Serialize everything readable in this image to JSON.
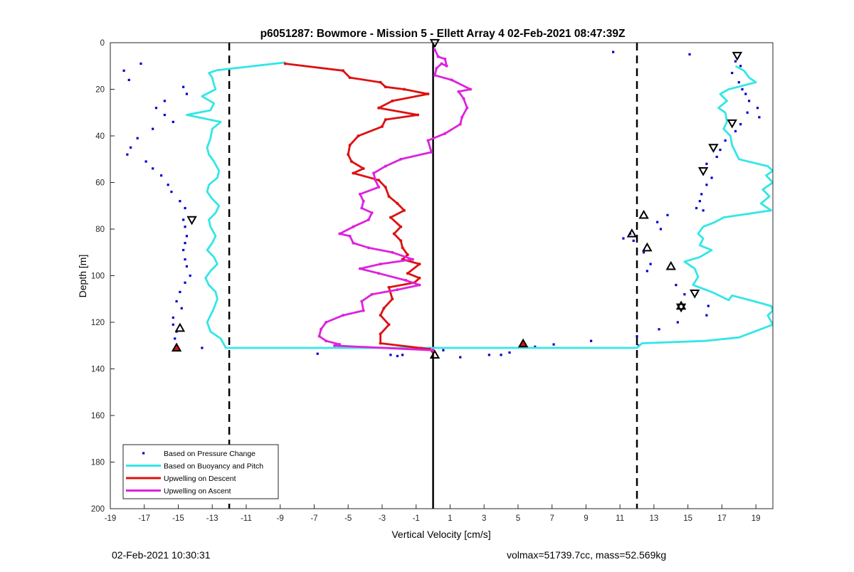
{
  "footer": {
    "timestamp": "02-Feb-2021 10:30:31",
    "stats": "volmax=51739.7cc, mass=52.569kg"
  },
  "chart_data": {
    "type": "line",
    "title": "p6051287: Bowmore - Mission 5 - Ellett Array 4 02-Feb-2021 08:47:39Z",
    "xlabel": "Vertical Velocity [cm/s]",
    "ylabel": "Depth [m]",
    "xlim": [
      -19,
      20
    ],
    "ylim": [
      0,
      200
    ],
    "y_reversed": true,
    "xticks": [
      -19,
      -17,
      -15,
      -13,
      -11,
      -9,
      -7,
      -5,
      -3,
      -1,
      1,
      3,
      5,
      7,
      9,
      11,
      13,
      15,
      17,
      19
    ],
    "yticks": [
      0,
      20,
      40,
      60,
      80,
      100,
      120,
      140,
      160,
      180,
      200
    ],
    "grid": false,
    "legend_position": "bottom-left",
    "vertical_lines": [
      {
        "x": -12,
        "style": "dashed",
        "color": "#000000"
      },
      {
        "x": 12,
        "style": "dashed",
        "color": "#000000"
      },
      {
        "x": 0,
        "style": "solid",
        "color": "#000000"
      }
    ],
    "series": [
      {
        "name": "Based on Pressure Change",
        "kind": "points",
        "color": "#0000cc",
        "points": [
          [
            -17.2,
            9
          ],
          [
            -18.2,
            12
          ],
          [
            -17.9,
            16
          ],
          [
            -14.7,
            19
          ],
          [
            -14.5,
            22
          ],
          [
            -15.8,
            25
          ],
          [
            -16.3,
            28
          ],
          [
            -15.8,
            31
          ],
          [
            -15.3,
            34
          ],
          [
            -16.5,
            37
          ],
          [
            -17.4,
            41
          ],
          [
            -17.8,
            45
          ],
          [
            -18,
            48
          ],
          [
            -16.9,
            51
          ],
          [
            -16.5,
            54
          ],
          [
            -16,
            57
          ],
          [
            -15.6,
            61
          ],
          [
            -15.4,
            64
          ],
          [
            -14.9,
            68
          ],
          [
            -14.6,
            71
          ],
          [
            -14.7,
            76
          ],
          [
            -14.6,
            79
          ],
          [
            -14.5,
            83
          ],
          [
            -14.6,
            86
          ],
          [
            -14.7,
            89
          ],
          [
            -14.6,
            93
          ],
          [
            -14.5,
            96
          ],
          [
            -14.3,
            100
          ],
          [
            -14.6,
            103
          ],
          [
            -14.9,
            107
          ],
          [
            -15.1,
            111
          ],
          [
            -14.8,
            114
          ],
          [
            -15.3,
            118
          ],
          [
            -15.3,
            121
          ],
          [
            -15.1,
            124
          ],
          [
            -15.2,
            127
          ],
          [
            -13.6,
            131
          ],
          [
            -15.2,
            132
          ],
          [
            -6.8,
            133.5
          ],
          [
            -2.5,
            134
          ],
          [
            -2.1,
            134.5
          ],
          [
            -1.8,
            134
          ],
          [
            -0.7,
            131
          ],
          [
            0.6,
            132
          ],
          [
            1.6,
            135
          ],
          [
            3.3,
            134
          ],
          [
            4,
            134
          ],
          [
            4.5,
            133
          ],
          [
            5.4,
            130
          ],
          [
            6,
            130.5
          ],
          [
            7.1,
            129.5
          ],
          [
            9.3,
            128
          ],
          [
            10.6,
            4
          ],
          [
            15.1,
            5
          ],
          [
            12,
            126
          ],
          [
            12.1,
            130
          ],
          [
            13.3,
            123
          ],
          [
            13.4,
            80
          ],
          [
            13.2,
            77
          ],
          [
            13.8,
            74
          ],
          [
            14.4,
            120
          ],
          [
            12.8,
            95
          ],
          [
            12.6,
            98
          ],
          [
            12.4,
            90
          ],
          [
            11.8,
            85
          ],
          [
            11.2,
            84
          ],
          [
            11.6,
            82
          ],
          [
            14.3,
            104
          ],
          [
            14.8,
            108
          ],
          [
            14.6,
            112
          ],
          [
            16.2,
            113
          ],
          [
            16.1,
            117
          ],
          [
            15.8,
            65
          ],
          [
            15.7,
            68
          ],
          [
            15.5,
            71
          ],
          [
            15.9,
            72
          ],
          [
            16.1,
            61
          ],
          [
            16.4,
            58
          ],
          [
            16.9,
            46
          ],
          [
            17.2,
            42
          ],
          [
            17.8,
            38
          ],
          [
            18.1,
            35
          ],
          [
            18.5,
            30
          ],
          [
            19.1,
            28
          ],
          [
            19.2,
            32
          ],
          [
            18.2,
            20
          ],
          [
            17.6,
            13
          ],
          [
            18,
            17
          ],
          [
            18.4,
            22
          ],
          [
            17.8,
            8
          ],
          [
            18.1,
            10
          ],
          [
            18.6,
            25
          ],
          [
            16.1,
            52
          ],
          [
            16.7,
            49
          ]
        ]
      },
      {
        "name": "Based on Buoyancy and Pitch",
        "kind": "line",
        "color": "#33e6e6",
        "points": [
          [
            -8.7,
            8.5
          ],
          [
            -12.7,
            11.8
          ],
          [
            -13.2,
            13
          ],
          [
            -13,
            15
          ],
          [
            -12.9,
            18
          ],
          [
            -12.8,
            20
          ],
          [
            -13.6,
            23
          ],
          [
            -12.9,
            26
          ],
          [
            -13.1,
            29
          ],
          [
            -14.5,
            31
          ],
          [
            -12.5,
            34
          ],
          [
            -13,
            37
          ],
          [
            -13.1,
            41
          ],
          [
            -13.3,
            45
          ],
          [
            -13.2,
            48
          ],
          [
            -12.9,
            51
          ],
          [
            -12.6,
            55
          ],
          [
            -12.7,
            58
          ],
          [
            -13.2,
            61
          ],
          [
            -13.3,
            64
          ],
          [
            -13,
            67
          ],
          [
            -12.6,
            70
          ],
          [
            -12.8,
            73
          ],
          [
            -13.2,
            76
          ],
          [
            -13.1,
            79
          ],
          [
            -12.8,
            83
          ],
          [
            -13,
            86
          ],
          [
            -13.3,
            89
          ],
          [
            -12.9,
            92
          ],
          [
            -12.7,
            95
          ],
          [
            -13.1,
            98
          ],
          [
            -13.4,
            101
          ],
          [
            -13.2,
            104
          ],
          [
            -12.8,
            107
          ],
          [
            -12.7,
            110
          ],
          [
            -12.9,
            114
          ],
          [
            -13.1,
            117
          ],
          [
            -13.3,
            120
          ],
          [
            -13.1,
            124
          ],
          [
            -12.5,
            127
          ],
          [
            -12.2,
            131
          ],
          [
            -5,
            131
          ],
          [
            2,
            131
          ],
          [
            8,
            131
          ],
          [
            12,
            131
          ],
          [
            12.3,
            129
          ],
          [
            16,
            128
          ],
          [
            18,
            126.5
          ],
          [
            20,
            121
          ],
          [
            19.7,
            117
          ],
          [
            20,
            115
          ],
          [
            19.9,
            113
          ],
          [
            18.9,
            111
          ],
          [
            17.6,
            108.5
          ],
          [
            17.4,
            110.5
          ],
          [
            16.4,
            107
          ],
          [
            15.3,
            104
          ],
          [
            15.6,
            100.5
          ],
          [
            15.4,
            97
          ],
          [
            14.8,
            94
          ],
          [
            15.7,
            92
          ],
          [
            16.4,
            89
          ],
          [
            15.7,
            87
          ],
          [
            15.9,
            84
          ],
          [
            15.6,
            82
          ],
          [
            15.9,
            79
          ],
          [
            16.6,
            77
          ],
          [
            17.1,
            75
          ],
          [
            19.9,
            72
          ],
          [
            19.3,
            69
          ],
          [
            19.8,
            66
          ],
          [
            19.4,
            63
          ],
          [
            20,
            60
          ],
          [
            19.6,
            57
          ],
          [
            20,
            55
          ],
          [
            19.7,
            53
          ],
          [
            18,
            50
          ],
          [
            17.8,
            47
          ],
          [
            17.6,
            44
          ],
          [
            17.5,
            40
          ],
          [
            17.1,
            37
          ],
          [
            17.3,
            34
          ],
          [
            17.2,
            30
          ],
          [
            16.8,
            28
          ],
          [
            17.3,
            25
          ],
          [
            16.9,
            22
          ],
          [
            17.4,
            20
          ],
          [
            19,
            17
          ],
          [
            18.6,
            15
          ],
          [
            18.3,
            12
          ],
          [
            17.8,
            10
          ]
        ]
      },
      {
        "name": "Upwelling on Descent",
        "kind": "line",
        "color": "#dd1111",
        "points": [
          [
            -8.7,
            9
          ],
          [
            -5.3,
            12
          ],
          [
            -4.9,
            15
          ],
          [
            -3.1,
            17
          ],
          [
            -2.8,
            19
          ],
          [
            -1.7,
            20
          ],
          [
            -0.3,
            22
          ],
          [
            -2.4,
            25
          ],
          [
            -3.2,
            28
          ],
          [
            -0.9,
            31
          ],
          [
            -2.8,
            33
          ],
          [
            -3,
            36
          ],
          [
            -4.4,
            40
          ],
          [
            -4.9,
            44
          ],
          [
            -5,
            48
          ],
          [
            -4.8,
            51
          ],
          [
            -4.1,
            54
          ],
          [
            -4.7,
            56
          ],
          [
            -3.2,
            59
          ],
          [
            -2.8,
            62
          ],
          [
            -2.6,
            66
          ],
          [
            -2.1,
            69
          ],
          [
            -1.7,
            72
          ],
          [
            -2.5,
            75
          ],
          [
            -1.9,
            79
          ],
          [
            -2.3,
            82
          ],
          [
            -1.9,
            85
          ],
          [
            -1.8,
            88
          ],
          [
            -1.5,
            91
          ],
          [
            -1.8,
            93
          ],
          [
            -0.8,
            95
          ],
          [
            -1.5,
            99
          ],
          [
            -0.8,
            101
          ],
          [
            -1.1,
            103
          ],
          [
            -2.6,
            105
          ],
          [
            -2.4,
            110
          ],
          [
            -2.9,
            114
          ],
          [
            -3.1,
            117
          ],
          [
            -2.6,
            121
          ],
          [
            -3.1,
            125
          ],
          [
            -3.1,
            129
          ],
          [
            -0.2,
            131.5
          ],
          [
            0,
            133
          ]
        ]
      },
      {
        "name": "Upwelling on Ascent",
        "kind": "line",
        "color": "#dd22dd",
        "points": [
          [
            0,
            132
          ],
          [
            -5.8,
            130
          ],
          [
            -5.5,
            129.5
          ],
          [
            -6.3,
            128
          ],
          [
            -6.7,
            126
          ],
          [
            -6.6,
            123
          ],
          [
            -6.3,
            120
          ],
          [
            -5.3,
            117
          ],
          [
            -4.1,
            115
          ],
          [
            -4.2,
            111
          ],
          [
            -3.6,
            108
          ],
          [
            -2.1,
            106
          ],
          [
            -0.8,
            104
          ],
          [
            -1.6,
            102
          ],
          [
            -3.2,
            99
          ],
          [
            -4.3,
            97
          ],
          [
            -3.1,
            95
          ],
          [
            -1.2,
            93
          ],
          [
            -2.4,
            90
          ],
          [
            -3.8,
            88
          ],
          [
            -4.7,
            86
          ],
          [
            -4.9,
            83
          ],
          [
            -5.5,
            82
          ],
          [
            -4.7,
            79
          ],
          [
            -3.8,
            76
          ],
          [
            -3.6,
            73
          ],
          [
            -4.2,
            71
          ],
          [
            -4.1,
            68
          ],
          [
            -4.3,
            65
          ],
          [
            -3.2,
            62
          ],
          [
            -3.4,
            59
          ],
          [
            -3.5,
            56
          ],
          [
            -2.8,
            53
          ],
          [
            -1.9,
            50
          ],
          [
            -0.1,
            47
          ],
          [
            -0.3,
            42
          ],
          [
            0.7,
            39
          ],
          [
            1.6,
            35
          ],
          [
            1.7,
            32
          ],
          [
            2,
            28
          ],
          [
            1.8,
            24
          ],
          [
            1.5,
            21
          ],
          [
            2.2,
            20
          ],
          [
            1.1,
            16
          ],
          [
            0.1,
            14
          ],
          [
            0.2,
            11
          ],
          [
            0.5,
            9
          ],
          [
            0.8,
            10
          ],
          [
            0.7,
            7
          ],
          [
            0.3,
            6
          ],
          [
            0.1,
            3
          ]
        ]
      }
    ],
    "markers": {
      "outline_color": "#000000",
      "red_fill": "#dd1111",
      "up_triangles_open": [
        [
          -14.9,
          122.5
        ],
        [
          0.1,
          134
        ],
        [
          12.4,
          74
        ],
        [
          11.7,
          82
        ],
        [
          12.6,
          88
        ],
        [
          14,
          96
        ],
        [
          14.6,
          113
        ]
      ],
      "down_triangles_open": [
        [
          -14.2,
          76
        ],
        [
          0.1,
          0
        ],
        [
          17.9,
          5.5
        ],
        [
          17.6,
          34.5
        ],
        [
          16.5,
          45
        ],
        [
          15.9,
          55
        ],
        [
          15.4,
          107.5
        ],
        [
          14.6,
          113.5
        ]
      ],
      "up_triangles_red": [
        [
          -15.1,
          131
        ],
        [
          5.3,
          129.2
        ]
      ]
    }
  }
}
